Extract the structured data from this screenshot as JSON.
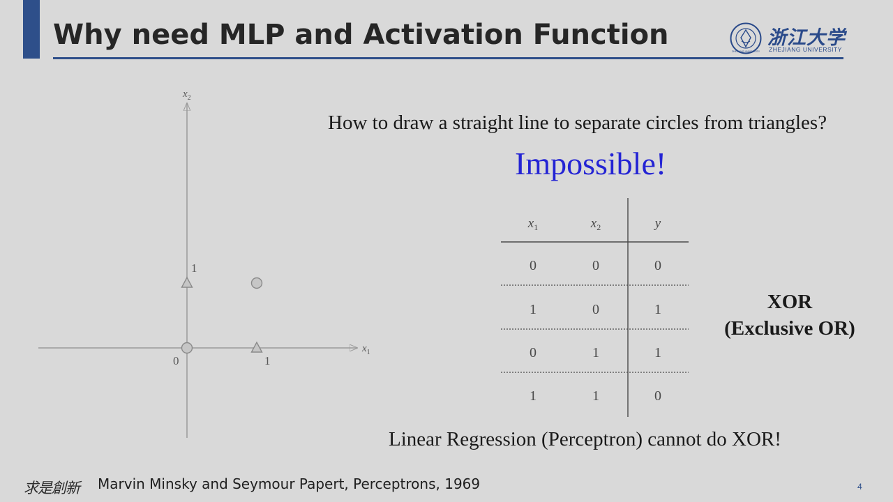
{
  "slide": {
    "title": "Why need MLP and Activation Function",
    "question": "How to draw a straight line to separate circles from triangles?",
    "exclaim": "Impossible!",
    "conclusion": "Linear Regression (Perceptron) cannot do XOR!",
    "citation": "Marvin Minsky and Seymour Papert, Perceptrons, 1969",
    "page_number": "4",
    "colors": {
      "accent": "#2e4f8a",
      "exclaim": "#2424d4",
      "background": "#d9d9d9"
    }
  },
  "logo": {
    "name_cn": "浙江大学",
    "name_en": "ZHEJIANG UNIVERSITY",
    "seal_text": "ZHEJIANG UNIVERSITY"
  },
  "footer": {
    "motto_logo": "求是創新"
  },
  "xor": {
    "line1": "XOR",
    "line2": "(Exclusive OR)"
  },
  "plot": {
    "axis_x_label": "x",
    "axis_x_sub": "1",
    "axis_y_label": "x",
    "axis_y_sub": "2",
    "origin_label": "0",
    "tick_x_label": "1",
    "tick_y_label": "1",
    "points": [
      {
        "x": 0,
        "y": 0,
        "shape": "circle"
      },
      {
        "x": 1,
        "y": 1,
        "shape": "circle"
      },
      {
        "x": 1,
        "y": 0,
        "shape": "triangle"
      },
      {
        "x": 0,
        "y": 1,
        "shape": "triangle"
      }
    ]
  },
  "truth_table": {
    "headers": [
      {
        "base": "x",
        "sub": "1"
      },
      {
        "base": "x",
        "sub": "2"
      },
      {
        "base": "y",
        "sub": ""
      }
    ],
    "rows": [
      [
        "0",
        "0",
        "0"
      ],
      [
        "1",
        "0",
        "1"
      ],
      [
        "0",
        "1",
        "1"
      ],
      [
        "1",
        "1",
        "0"
      ]
    ]
  }
}
